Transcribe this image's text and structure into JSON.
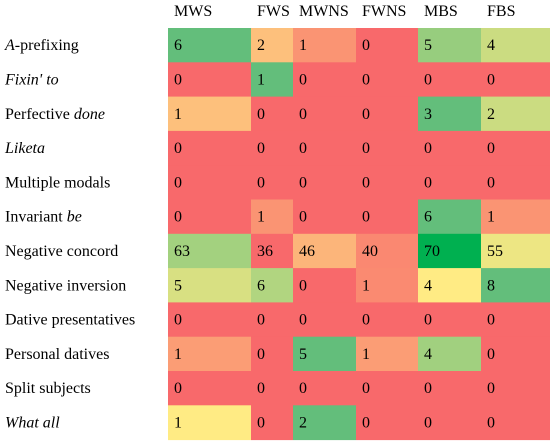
{
  "chart_data": {
    "type": "heatmap",
    "columns": [
      "MWS",
      "FWS",
      "MWNS",
      "FWNS",
      "MBS",
      "FBS"
    ],
    "rows": [
      {
        "label": "A-prefixing",
        "label_parts": [
          {
            "text": "A",
            "italic": true
          },
          {
            "text": "-prefixing",
            "italic": false
          }
        ],
        "values": [
          6,
          2,
          1,
          0,
          5,
          4
        ]
      },
      {
        "label": "Fixin' to",
        "label_parts": [
          {
            "text": "Fixin' to",
            "italic": true
          }
        ],
        "values": [
          0,
          1,
          0,
          0,
          0,
          0
        ]
      },
      {
        "label": "Perfective done",
        "label_parts": [
          {
            "text": "Perfective ",
            "italic": false
          },
          {
            "text": "done",
            "italic": true
          }
        ],
        "values": [
          1,
          0,
          0,
          0,
          3,
          2
        ]
      },
      {
        "label": "Liketa",
        "label_parts": [
          {
            "text": "Liketa",
            "italic": true
          }
        ],
        "values": [
          0,
          0,
          0,
          0,
          0,
          0
        ]
      },
      {
        "label": "Multiple modals",
        "label_parts": [
          {
            "text": "Multiple modals",
            "italic": false
          }
        ],
        "values": [
          0,
          0,
          0,
          0,
          0,
          0
        ]
      },
      {
        "label": "Invariant be",
        "label_parts": [
          {
            "text": "Invariant ",
            "italic": false
          },
          {
            "text": "be",
            "italic": true
          }
        ],
        "values": [
          0,
          1,
          0,
          0,
          6,
          1
        ]
      },
      {
        "label": "Negative concord",
        "label_parts": [
          {
            "text": "Negative concord",
            "italic": false
          }
        ],
        "values": [
          63,
          36,
          46,
          40,
          70,
          55
        ]
      },
      {
        "label": "Negative inversion",
        "label_parts": [
          {
            "text": "Negative inversion",
            "italic": false
          }
        ],
        "values": [
          5,
          6,
          0,
          1,
          4,
          8
        ]
      },
      {
        "label": "Dative presentatives",
        "label_parts": [
          {
            "text": "Dative presentatives",
            "italic": false
          }
        ],
        "values": [
          0,
          0,
          0,
          0,
          0,
          0
        ]
      },
      {
        "label": "Personal datives",
        "label_parts": [
          {
            "text": "Personal datives",
            "italic": false
          }
        ],
        "values": [
          1,
          0,
          5,
          1,
          4,
          0
        ]
      },
      {
        "label": "Split subjects",
        "label_parts": [
          {
            "text": "Split subjects",
            "italic": false
          }
        ],
        "values": [
          0,
          0,
          0,
          0,
          0,
          0
        ]
      },
      {
        "label": "What all",
        "label_parts": [
          {
            "text": "What all",
            "italic": true
          }
        ],
        "values": [
          1,
          0,
          2,
          0,
          0,
          0
        ]
      }
    ],
    "color_scale": "per-row (red = row minimum, yellow = row midpoint, green = row maximum)",
    "colors": {
      "low": "#F8696B",
      "mid": "#FFEB84",
      "high": "#63BE7B",
      "top_highlight": "#00B050"
    },
    "top_highlight_cell": {
      "row": "Negative concord",
      "column": "MBS"
    }
  }
}
